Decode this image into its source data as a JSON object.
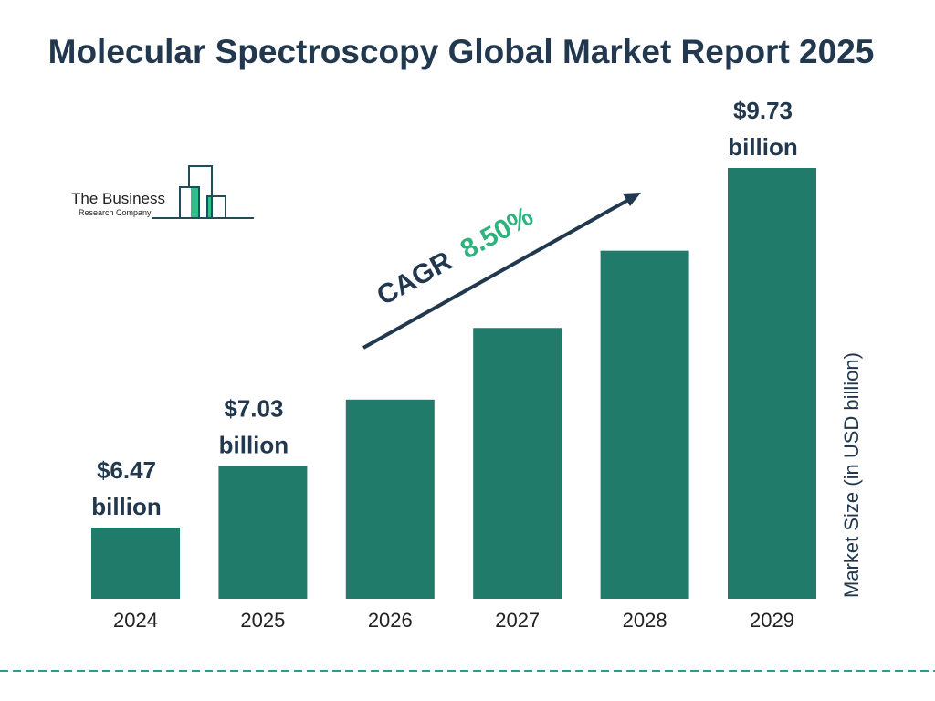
{
  "chart_data": {
    "type": "bar",
    "title": "Molecular Spectroscopy Global Market Report 2025",
    "categories": [
      "2024",
      "2025",
      "2026",
      "2027",
      "2028",
      "2029"
    ],
    "values": [
      6.47,
      7.03,
      7.63,
      8.28,
      8.98,
      9.73
    ],
    "data_labels": [
      "$6.47 billion",
      "$7.03 billion",
      "",
      "",
      "",
      "$9.73 billion"
    ],
    "data_label_lines": [
      [
        "$6.47",
        "billion"
      ],
      [
        "$7.03",
        "billion"
      ],
      [],
      [],
      [],
      [
        "$9.73",
        "billion"
      ]
    ],
    "xlabel": "",
    "ylabel": "Market Size (in USD billion)",
    "grid": false,
    "annotation": {
      "prefix": "CAGR",
      "value": "8.50%"
    },
    "colors": {
      "bar": "#217b6b",
      "title": "#22384f",
      "cagr": "#2db37d",
      "divider": "#2a9d8f"
    }
  },
  "logo": {
    "line1": "The Business",
    "line2": "Research Company"
  }
}
